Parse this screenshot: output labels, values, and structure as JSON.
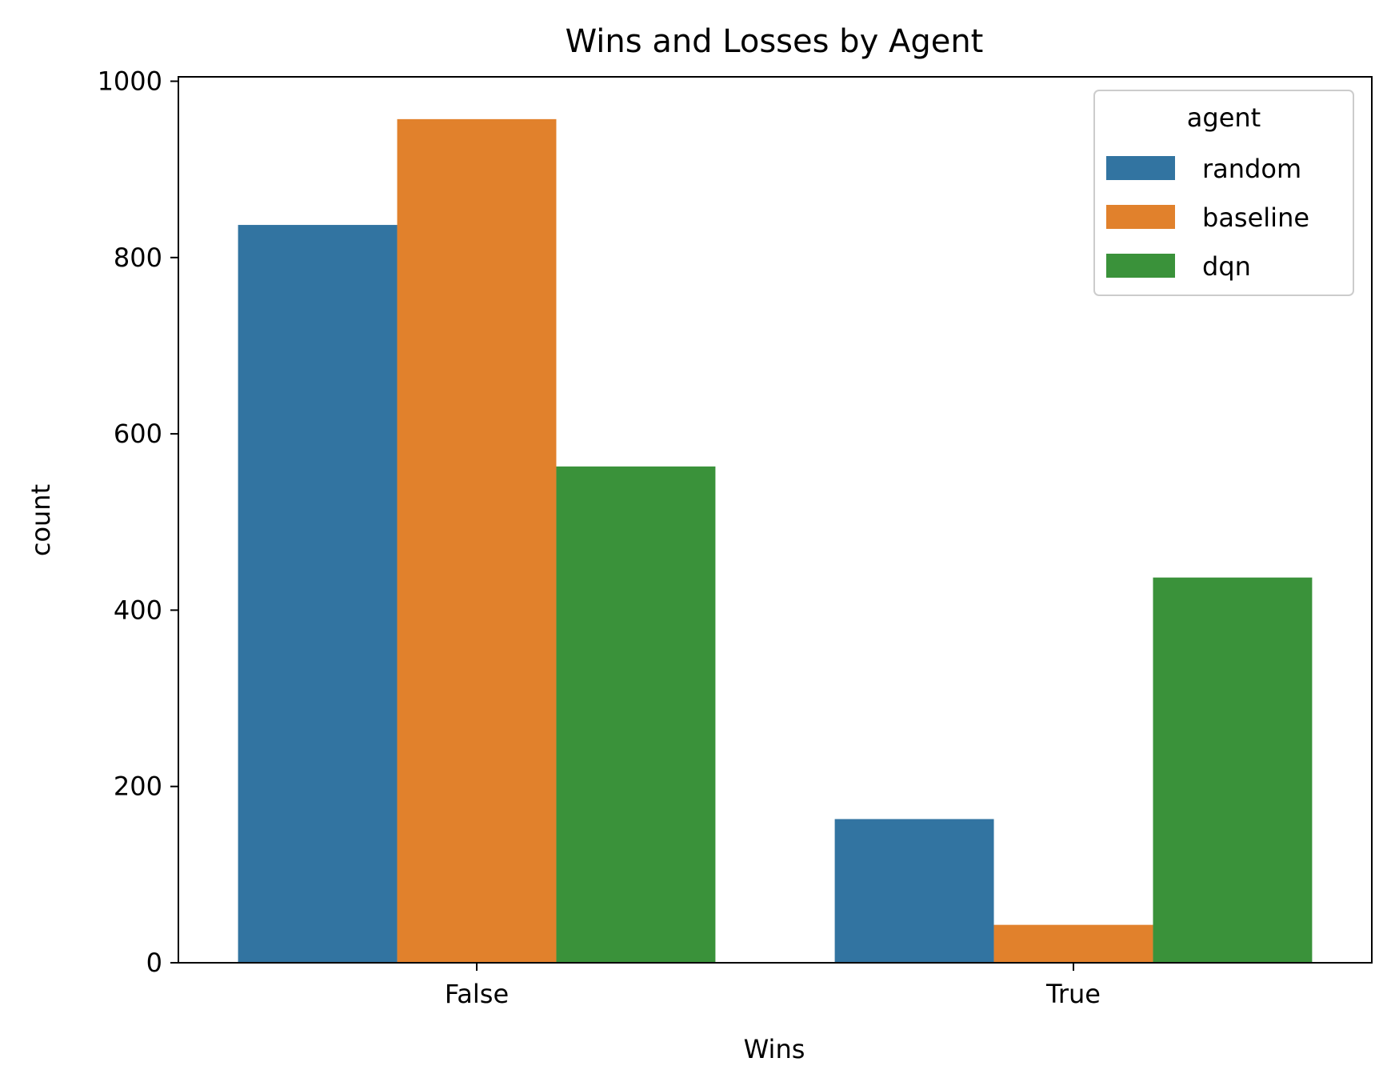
{
  "chart_data": {
    "type": "bar",
    "title": "Wins and Losses by Agent",
    "xlabel": "Wins",
    "ylabel": "count",
    "categories": [
      "False",
      "True"
    ],
    "ylim": [
      0,
      1005
    ],
    "yticks": [
      0,
      200,
      400,
      600,
      800,
      1000
    ],
    "grid": false,
    "legend": {
      "title": "agent",
      "position": "top-right"
    },
    "series": [
      {
        "name": "random",
        "color": "#3274a1",
        "values": [
          837,
          163
        ]
      },
      {
        "name": "baseline",
        "color": "#e1812c",
        "values": [
          957,
          43
        ]
      },
      {
        "name": "dqn",
        "color": "#3a923a",
        "values": [
          563,
          437
        ]
      }
    ]
  }
}
